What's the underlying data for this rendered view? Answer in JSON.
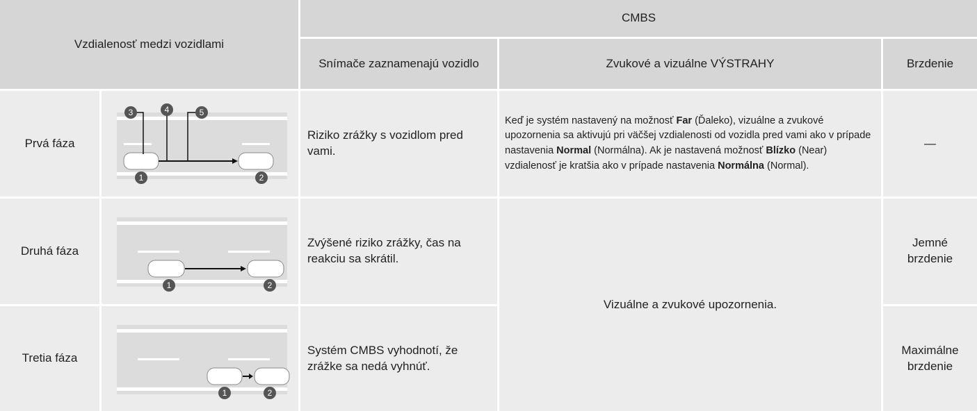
{
  "table": {
    "header": {
      "distance": "Vzdialenosť medzi vozidlami",
      "cmbs": "CMBS",
      "sensors": "Snímače zaznamenajú vozidlo",
      "warnings": "Zvukové a vizuálne VÝSTRAHY",
      "braking": "Brzdenie"
    },
    "rows": [
      {
        "phase": "Prvá fáza",
        "markers": [
          "3",
          "4",
          "5",
          "1",
          "2"
        ],
        "sensors": "Riziko zrážky s vozidlom pred vami.",
        "warning": [
          "Keď je systém nastavený na možnosť ",
          "Far",
          " (Ďaleko), vizuálne a zvukové upozornenia sa aktivujú pri väčšej vzdialenosti od vozidla pred vami ako v prípade nastavenia ",
          "Normal",
          " (Normálna). Ak je nastavená možnosť ",
          "Blízko",
          " (Near) vzdialenosť je kratšia ako v prípade nastavenia ",
          "Normálna",
          " (Normal)."
        ],
        "braking": "—"
      },
      {
        "phase": "Druhá fáza",
        "markers": [
          "1",
          "2"
        ],
        "sensors": "Zvýšené riziko zrážky, čas na reakciu sa skrátil.",
        "warning": "Vizuálne a zvukové upozornenia.",
        "braking": "Jemné brzdenie"
      },
      {
        "phase": "Tretia fáza",
        "markers": [
          "1",
          "2"
        ],
        "sensors": "Systém CMBS vyhodnotí, že zrážke sa nedá vyhnúť.",
        "braking": "Maximálne brzdenie"
      }
    ]
  }
}
